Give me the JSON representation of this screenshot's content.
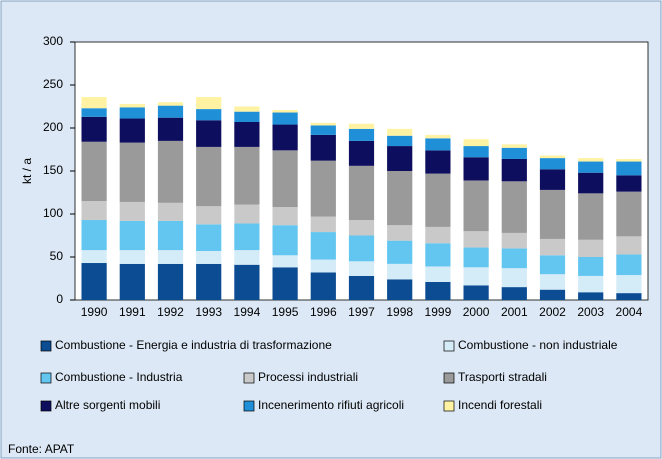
{
  "chart_data": {
    "type": "stacked_bar",
    "ylabel": "kt / a",
    "source": "Fonte: APAT",
    "categories": [
      "1990",
      "1991",
      "1992",
      "1993",
      "1994",
      "1995",
      "1996",
      "1997",
      "1998",
      "1999",
      "2000",
      "2001",
      "2002",
      "2003",
      "2004"
    ],
    "series": [
      {
        "name": "Combustione - Energia e industria di trasformazione",
        "color": "#0b4c93",
        "values": [
          43,
          42,
          42,
          42,
          41,
          38,
          32,
          28,
          24,
          21,
          17,
          15,
          12,
          9,
          8
        ]
      },
      {
        "name": "Combustione - non industriale",
        "color": "#d4ebf8",
        "values": [
          15,
          16,
          16,
          15,
          17,
          14,
          15,
          17,
          18,
          18,
          21,
          22,
          18,
          19,
          21
        ]
      },
      {
        "name": "Combustione - Industria",
        "color": "#62c6f0",
        "values": [
          35,
          34,
          34,
          31,
          31,
          35,
          32,
          30,
          27,
          27,
          23,
          23,
          22,
          22,
          24
        ]
      },
      {
        "name": "Processi industriali",
        "color": "#c9c9c9",
        "values": [
          22,
          22,
          21,
          21,
          22,
          21,
          18,
          18,
          18,
          19,
          19,
          18,
          19,
          20,
          21
        ]
      },
      {
        "name": "Trasporti stradali",
        "color": "#9a9a9a",
        "values": [
          69,
          69,
          72,
          69,
          67,
          66,
          65,
          63,
          63,
          62,
          59,
          60,
          57,
          54,
          52
        ]
      },
      {
        "name": "Altre sorgenti mobili",
        "color": "#0e0e5e",
        "values": [
          29,
          28,
          27,
          31,
          29,
          30,
          30,
          29,
          29,
          27,
          27,
          26,
          24,
          24,
          19
        ]
      },
      {
        "name": "Incenerimento rifiuti agricoli",
        "color": "#1f8fd8",
        "values": [
          10,
          13,
          14,
          13,
          12,
          14,
          11,
          14,
          12,
          14,
          13,
          13,
          13,
          13,
          16
        ]
      },
      {
        "name": "Incendi forestali",
        "color": "#fff3a3",
        "values": [
          13,
          4,
          4,
          14,
          6,
          3,
          3,
          6,
          8,
          4,
          8,
          4,
          3,
          4,
          3
        ]
      }
    ],
    "ylim": [
      0,
      300
    ],
    "yticks": [
      0,
      50,
      100,
      150,
      200,
      250,
      300
    ],
    "grid": false
  }
}
